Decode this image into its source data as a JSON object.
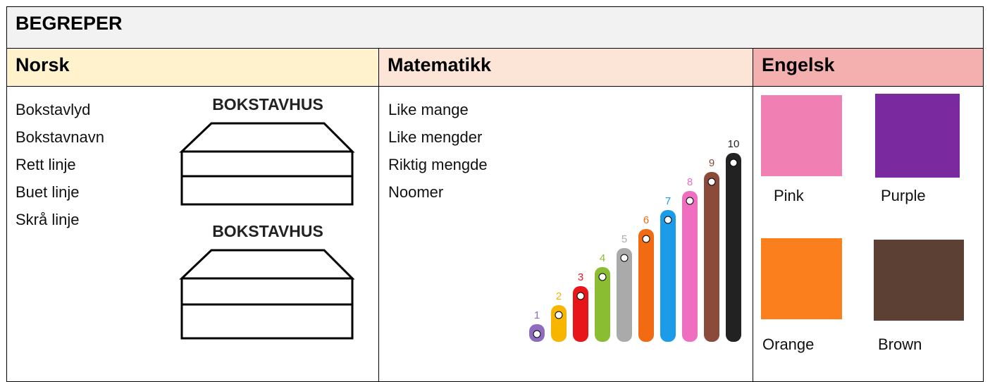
{
  "title": "BEGREPER",
  "columns": [
    {
      "header": "Norsk",
      "background": "#fff2cc",
      "items": [
        "Bokstavlyd",
        "Bokstavnavn",
        "Rett linje",
        "Buet linje",
        "Skrå linje"
      ],
      "house_labels": [
        "BOKSTAVHUS",
        "BOKSTAVHUS"
      ]
    },
    {
      "header": "Matematikk",
      "background": "#fce4d6",
      "items": [
        "Like mange",
        "Like mengder",
        "Riktig mengde",
        "Noomer"
      ],
      "noomer": [
        {
          "label": "1",
          "color": "#8e6bbf"
        },
        {
          "label": "2",
          "color": "#f7b500"
        },
        {
          "label": "3",
          "color": "#e8151b"
        },
        {
          "label": "4",
          "color": "#8bbd33"
        },
        {
          "label": "5",
          "color": "#aaaaaa"
        },
        {
          "label": "6",
          "color": "#f26a11"
        },
        {
          "label": "7",
          "color": "#1c9ce8"
        },
        {
          "label": "8",
          "color": "#f06ec0"
        },
        {
          "label": "9",
          "color": "#8b4a3a"
        },
        {
          "label": "10",
          "color": "#222222"
        }
      ]
    },
    {
      "header": "Engelsk",
      "background": "#f4b0ae",
      "colors": [
        {
          "name": "Pink",
          "color": "#f080b4"
        },
        {
          "name": "Purple",
          "color": "#7a2a9e"
        },
        {
          "name": "Orange",
          "color": "#fb7f1c"
        },
        {
          "name": "Brown",
          "color": "#5c4033"
        }
      ]
    }
  ]
}
